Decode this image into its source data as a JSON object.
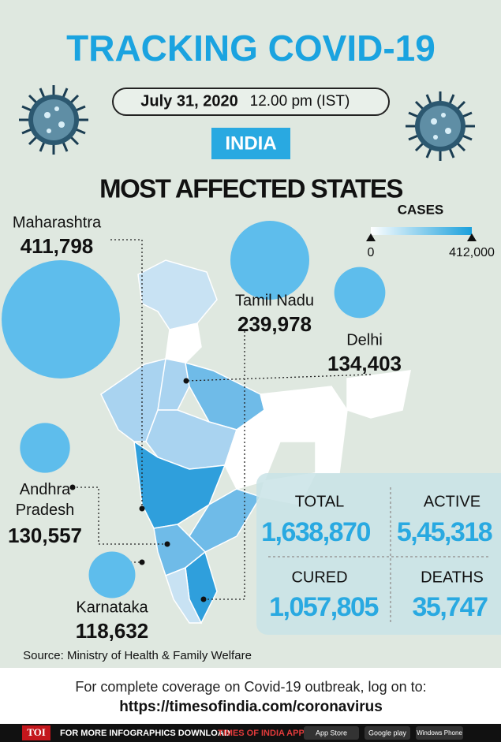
{
  "header": {
    "title": "TRACKING COVID-19",
    "date": "July 31, 2020",
    "time": "12.00 pm (IST)",
    "country": "INDIA",
    "subtitle": "MOST AFFECTED STATES"
  },
  "legend": {
    "title": "CASES",
    "min": 0,
    "max": {
      "value": 412000,
      "label": "412,000"
    }
  },
  "states": {
    "names": [
      "Maharashtra",
      "Tamil Nadu",
      "Delhi",
      "Andhra Pradesh",
      "Karnataka"
    ],
    "values": [
      411798,
      239978,
      134403,
      130557,
      118632
    ],
    "value_labels": [
      "411,798",
      "239,978",
      "134,403",
      "130,557",
      "118,632"
    ]
  },
  "stats": {
    "total": {
      "label": "TOTAL",
      "value": "1,638,870"
    },
    "active": {
      "label": "ACTIVE",
      "value": "5,45,318"
    },
    "cured": {
      "label": "CURED",
      "value": "1,057,805"
    },
    "deaths": {
      "label": "DEATHS",
      "value": "35,747"
    }
  },
  "source": "Source: Ministry of Health & Family Welfare",
  "footer": {
    "text": "For complete coverage on Covid-19 outbreak, log on to:",
    "url": "https://timesofindia.com/coronavirus"
  },
  "bottom_bar": {
    "logo": "TOI",
    "text": "FOR MORE INFOGRAPHICS DOWNLOAD",
    "app": "TIMES OF INDIA APP",
    "store1": "App Store",
    "store2": "Google play",
    "store3": "Windows Phone"
  }
}
